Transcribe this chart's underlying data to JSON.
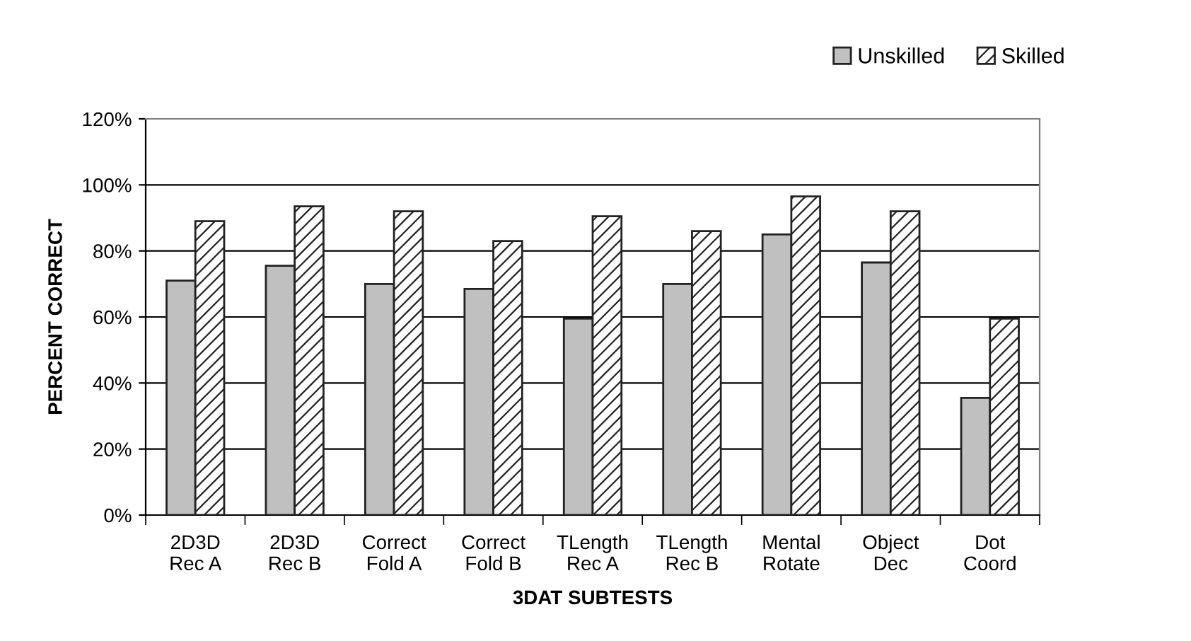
{
  "chart_data": {
    "type": "bar",
    "xlabel": "3DAT SUBTESTS",
    "ylabel": "PERCENT CORRECT",
    "categories": [
      "2D3D\nRec A",
      "2D3D\nRec B",
      "Correct\nFold A",
      "Correct\nFold B",
      "TLength\nRec A",
      "TLength\nRec B",
      "Mental\nRotate",
      "Object\nDec",
      "Dot\nCoord"
    ],
    "series": [
      {
        "name": "Unskilled",
        "color": "#c0c0c0",
        "values": [
          71,
          75.5,
          70,
          68.5,
          59.5,
          70,
          85,
          76.5,
          35.5
        ]
      },
      {
        "name": "Skilled",
        "color": "#222222",
        "values": [
          89,
          93.5,
          92,
          83,
          90.5,
          86,
          96.5,
          92,
          59.5
        ]
      }
    ],
    "ylim": [
      0,
      120
    ],
    "yticks": [
      {
        "value": 0,
        "label": "0%"
      },
      {
        "value": 20,
        "label": "20%"
      },
      {
        "value": 40,
        "label": "40%"
      },
      {
        "value": 60,
        "label": "60%"
      },
      {
        "value": 80,
        "label": "80%"
      },
      {
        "value": 100,
        "label": "100%"
      },
      {
        "value": 120,
        "label": "120%"
      }
    ],
    "grid": "y",
    "legend": "top right"
  }
}
